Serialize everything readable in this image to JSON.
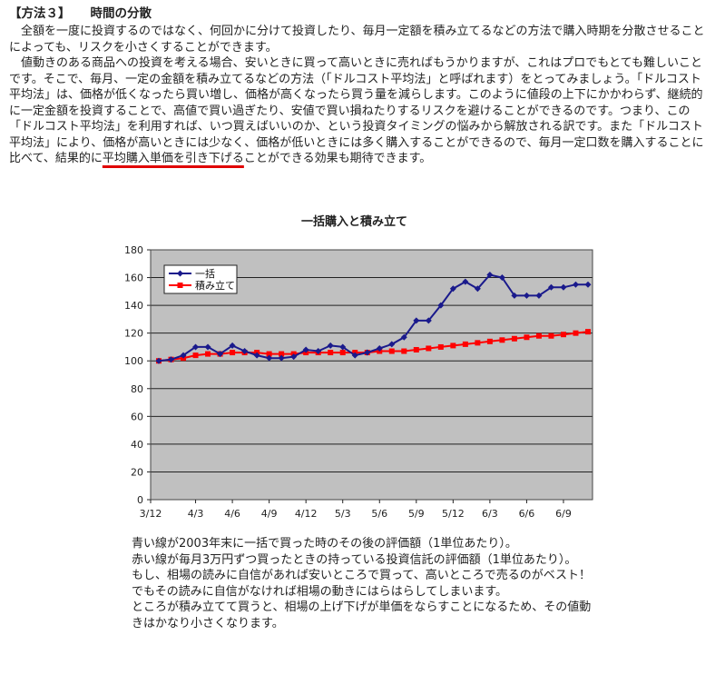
{
  "heading": {
    "label": "【方法３】",
    "title": "時間の分散"
  },
  "article": {
    "paragraphs": [
      "全額を一度に投資するのではなく、何回かに分けて投資したり、毎月一定額を積み立てるなどの方法で購入時期を分散させることによっても、リスクを小さくすることができます。",
      "値動きのある商品への投資を考える場合、安いときに買って高いときに売ればもうかりますが、これはプロでもとても難しいことです。そこで、毎月、一定の金額を積み立てるなどの方法（「ドルコスト平均法」と呼ばれます）をとってみましょう。「ドルコスト平均法」は、価格が低くなったら買い増し、価格が高くなったら買う量を減らします。このように値段の上下にかかわらず、継続的に一定金額を投資することで、高値で買い過ぎたり、安値で買い損ねたりするリスクを避けることができるのです。つまり、この「ドルコスト平均法」を利用すれば、いつ買えばいいのか、という投資タイミングの悩みから解放される訳です。また「ドルコスト平均法」により、価格が高いときには少なく、価格が低いときには多く購入することができるので、毎月一定口数を購入することに比べて、結果的に"
    ],
    "key_phrase": "平均購入単価を引き下げる",
    "closing": "ことができる効果も期待できます。"
  },
  "chart_data": {
    "type": "line",
    "title": "一括購入と積み立て",
    "xlabel": "",
    "ylabel": "",
    "ylim": [
      0,
      180
    ],
    "yticks": [
      0,
      20,
      40,
      60,
      80,
      100,
      120,
      140,
      160,
      180
    ],
    "x_tick_labels": [
      "3/12",
      "4/3",
      "4/6",
      "4/9",
      "4/12",
      "5/3",
      "5/6",
      "5/9",
      "5/12",
      "6/3",
      "6/6",
      "6/9"
    ],
    "grid": "horizontal",
    "legend_position": "top-left",
    "series": [
      {
        "name": "一括",
        "color": "#1a1a8c",
        "marker": "diamond",
        "values": [
          100,
          101,
          104,
          110,
          110,
          105,
          111,
          107,
          104,
          102,
          102,
          103,
          108,
          107,
          111,
          110,
          104,
          106,
          109,
          112,
          117,
          129,
          129,
          140,
          152,
          157,
          152,
          162,
          160,
          147,
          147,
          147,
          153,
          153,
          155,
          155
        ]
      },
      {
        "name": "積み立て",
        "color": "#ff0000",
        "marker": "square",
        "values": [
          100,
          101,
          102,
          104,
          105,
          105,
          106,
          106,
          106,
          105,
          105,
          105,
          106,
          106,
          106,
          106,
          106,
          106,
          107,
          107,
          107,
          108,
          109,
          110,
          111,
          112,
          113,
          114,
          115,
          116,
          117,
          118,
          118,
          119,
          120,
          121
        ]
      }
    ]
  },
  "explanation": {
    "lines": [
      "青い線が2003年末に一括で買った時のその後の評価額（1単位あたり）。",
      "赤い線が毎月3万円ずつ買ったときの持っている投資信託の評価額（1単位あたり）。",
      "もし、相場の読みに自信があれば安いところで買って、高いところで売るのがベスト！",
      "でもその読みに自信がなければ相場の動きにはらはらしてしまいます。",
      "ところが積み立てて買うと、相場の上げ下げが単価をならすことになるため、その値動きはかなり小さくなります。"
    ]
  }
}
